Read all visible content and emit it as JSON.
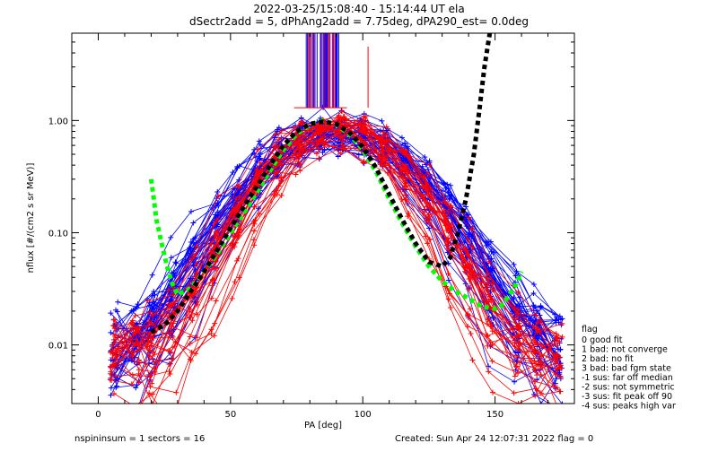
{
  "chart_data": {
    "type": "line",
    "title_line1": "2022-03-25/15:08:40 - 15:14:44 UT ela",
    "title_line2": "dSectr2add = 5, dPhAng2add = 7.75deg, dPA290_est=   0.0deg",
    "xlabel": "PA [deg]",
    "ylabel": "nflux [#/(cm2 s sr MeV)]",
    "xlim": [
      -10,
      180
    ],
    "ylim": [
      0.003,
      6.0
    ],
    "y_scale": "log",
    "x_ticks": [
      0,
      50,
      100,
      150
    ],
    "x_tick_labels": [
      "0",
      "50",
      "100",
      "150"
    ],
    "y_ticks": [
      0.01,
      0.1,
      1.0
    ],
    "y_tick_labels": [
      "0.01",
      "0.10",
      "1.00"
    ],
    "grid": false,
    "colors": {
      "red": "#ff0000",
      "blue": "#0000ff",
      "green": "#00ff00",
      "black": "#000000"
    },
    "series": [
      {
        "color": "green",
        "style": "dotted-thick",
        "x": [
          20,
          21,
          22,
          24,
          26,
          28,
          30,
          35,
          40,
          45,
          50,
          55,
          60,
          65,
          70,
          75,
          80,
          85,
          90,
          95,
          100,
          105,
          110,
          115,
          120,
          125,
          130,
          135,
          140,
          145,
          150,
          152,
          155,
          158,
          160
        ],
        "y": [
          0.3,
          0.2,
          0.13,
          0.08,
          0.05,
          0.035,
          0.028,
          0.032,
          0.045,
          0.065,
          0.1,
          0.15,
          0.23,
          0.36,
          0.55,
          0.76,
          0.92,
          1.0,
          0.92,
          0.75,
          0.55,
          0.35,
          0.2,
          0.12,
          0.075,
          0.05,
          0.037,
          0.03,
          0.026,
          0.022,
          0.021,
          0.022,
          0.027,
          0.035,
          0.045
        ]
      },
      {
        "color": "black",
        "style": "dotted-thick",
        "x": [
          20,
          25,
          30,
          35,
          40,
          45,
          50,
          55,
          60,
          65,
          70,
          75,
          80,
          85,
          90,
          95,
          100,
          105,
          110,
          115,
          120,
          125,
          130,
          133,
          136,
          139,
          142,
          144,
          146,
          148
        ],
        "y": [
          0.013,
          0.015,
          0.02,
          0.03,
          0.045,
          0.07,
          0.11,
          0.17,
          0.26,
          0.4,
          0.6,
          0.8,
          0.93,
          0.98,
          0.93,
          0.78,
          0.58,
          0.38,
          0.22,
          0.13,
          0.08,
          0.055,
          0.05,
          0.06,
          0.1,
          0.2,
          0.5,
          1.2,
          3.0,
          6.0
        ]
      }
    ],
    "scatter_families": [
      {
        "color": "blue",
        "style": "line-plus",
        "count": 44
      },
      {
        "color": "red",
        "style": "line-plus",
        "count": 30
      }
    ],
    "legend": {
      "placement": "right",
      "heading": "flag",
      "entries": [
        " 0 good fit",
        " 1 bad: not converge",
        " 2 bad: no fit",
        " 3 bad: bad fgm state",
        "-1 sus: far off median",
        "-2 sus: not symmetric",
        "-3 sus: fit peak off 90",
        "-4 sus: peaks high var"
      ]
    }
  },
  "footer": {
    "left": "nspininsum =  1  sectors = 16",
    "right": "Created: Sun Apr 24 12:07:31 2022   flag = 0"
  }
}
